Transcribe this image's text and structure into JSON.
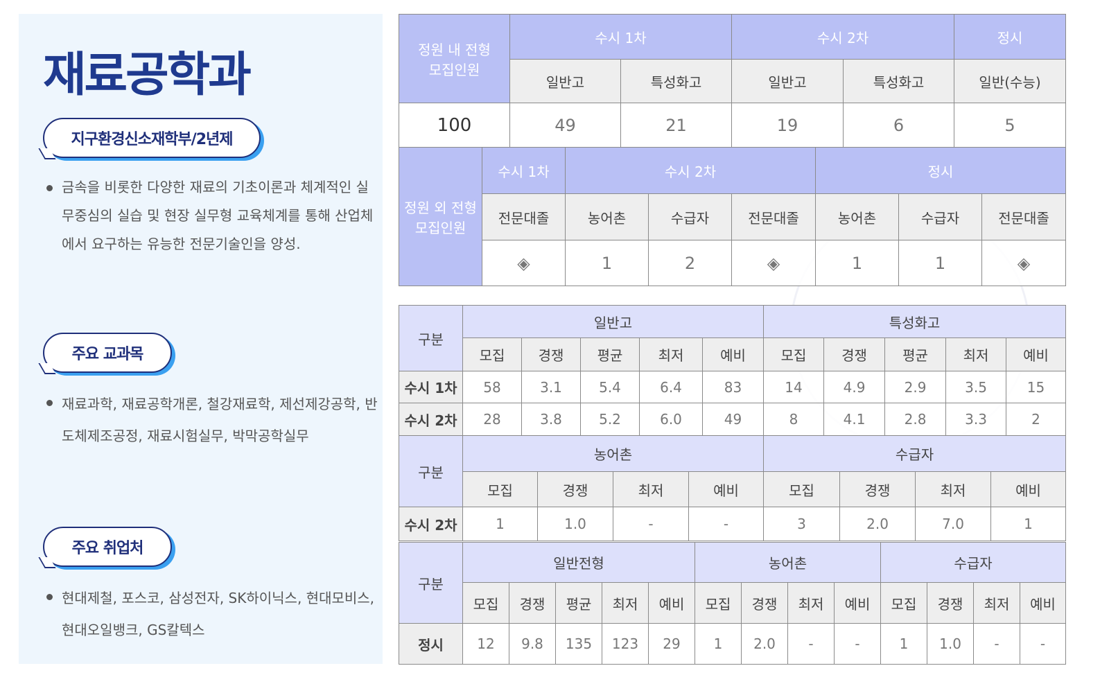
{
  "department": {
    "title": "재료공학과"
  },
  "sections": [
    {
      "badge": "지구환경신소재학부/2년제",
      "text": " 금속을 비롯한 다양한 재료의 기초이론과 체계적인 실무중심의 실습 및 현장 실무형 교육체계를 통해 산업체에서 요구하는 유능한 전문기술인을 양성."
    },
    {
      "badge": "주요 교과목",
      "text": "재료과학, 재료공학개론, 철강재료학, 제선제강공학, 반도체제조공정, 재료시험실무, 박막공학실무"
    },
    {
      "badge": "주요 취업처",
      "text": "현대제철, 포스코, 삼성전자, SK하이닉스, 현대모비스, 현대오일뱅크, GS칼텍스"
    }
  ],
  "colors": {
    "title": "#1f3a8f",
    "header_dark": "#b9c0f5",
    "header_light": "#dde0fb",
    "subheader": "#eeeeee",
    "badge_shadow": "#3aa0f0"
  },
  "tables": [
    {
      "id": "quota-inside",
      "rows": [
        [
          {
            "t": "정원 내 전형\n모집인원",
            "c": "h",
            "rs": 2
          },
          {
            "t": "수시 1차",
            "c": "h",
            "cs": 2
          },
          {
            "t": "수시 2차",
            "c": "h",
            "cs": 2
          },
          {
            "t": "정시",
            "c": "h"
          }
        ],
        [
          {
            "t": "일반고",
            "c": "s"
          },
          {
            "t": "특성화고",
            "c": "s"
          },
          {
            "t": "일반고",
            "c": "s"
          },
          {
            "t": "특성화고",
            "c": "s"
          },
          {
            "t": "일반(수능)",
            "c": "s"
          }
        ],
        [
          {
            "t": "100",
            "c": "v big"
          },
          {
            "t": "49",
            "c": "v"
          },
          {
            "t": "21",
            "c": "v"
          },
          {
            "t": "19",
            "c": "v"
          },
          {
            "t": "6",
            "c": "v"
          },
          {
            "t": "5",
            "c": "v"
          }
        ]
      ]
    },
    {
      "id": "quota-outside",
      "rows": [
        [
          {
            "t": "정원 외 전형\n모집인원",
            "c": "h",
            "rs": 3
          },
          {
            "t": "수시 1차",
            "c": "h"
          },
          {
            "t": "수시 2차",
            "c": "h",
            "cs": 3
          },
          {
            "t": "정시",
            "c": "h",
            "cs": 3
          }
        ],
        [
          {
            "t": "전문대졸",
            "c": "s"
          },
          {
            "t": "농어촌",
            "c": "s"
          },
          {
            "t": "수급자",
            "c": "s"
          },
          {
            "t": "전문대졸",
            "c": "s"
          },
          {
            "t": "농어촌",
            "c": "s"
          },
          {
            "t": "수급자",
            "c": "s"
          },
          {
            "t": "전문대졸",
            "c": "s"
          }
        ],
        [
          {
            "t": "◈",
            "c": "v"
          },
          {
            "t": "1",
            "c": "v"
          },
          {
            "t": "2",
            "c": "v"
          },
          {
            "t": "◈",
            "c": "v"
          },
          {
            "t": "1",
            "c": "v"
          },
          {
            "t": "1",
            "c": "v"
          },
          {
            "t": "◈",
            "c": "v"
          }
        ]
      ]
    },
    {
      "id": "results-susi",
      "rows": [
        [
          {
            "t": "구분",
            "c": "h",
            "rs": 2
          },
          {
            "t": "일반고",
            "c": "h",
            "cs": 5
          },
          {
            "t": "특성화고",
            "c": "h",
            "cs": 5
          }
        ],
        [
          {
            "t": "모집",
            "c": "s"
          },
          {
            "t": "경쟁",
            "c": "s"
          },
          {
            "t": "평균",
            "c": "s"
          },
          {
            "t": "최저",
            "c": "s"
          },
          {
            "t": "예비",
            "c": "s"
          },
          {
            "t": "모집",
            "c": "s"
          },
          {
            "t": "경쟁",
            "c": "s"
          },
          {
            "t": "평균",
            "c": "s"
          },
          {
            "t": "최저",
            "c": "s"
          },
          {
            "t": "예비",
            "c": "s"
          }
        ],
        [
          {
            "t": "수시 1차",
            "c": "rl"
          },
          {
            "t": "58",
            "c": "v"
          },
          {
            "t": "3.1",
            "c": "v"
          },
          {
            "t": "5.4",
            "c": "v"
          },
          {
            "t": "6.4",
            "c": "v"
          },
          {
            "t": "83",
            "c": "v"
          },
          {
            "t": "14",
            "c": "v"
          },
          {
            "t": "4.9",
            "c": "v"
          },
          {
            "t": "2.9",
            "c": "v"
          },
          {
            "t": "3.5",
            "c": "v"
          },
          {
            "t": "15",
            "c": "v"
          }
        ],
        [
          {
            "t": "수시 2차",
            "c": "rl"
          },
          {
            "t": "28",
            "c": "v"
          },
          {
            "t": "3.8",
            "c": "v"
          },
          {
            "t": "5.2",
            "c": "v"
          },
          {
            "t": "6.0",
            "c": "v"
          },
          {
            "t": "49",
            "c": "v"
          },
          {
            "t": "8",
            "c": "v"
          },
          {
            "t": "4.1",
            "c": "v"
          },
          {
            "t": "2.8",
            "c": "v"
          },
          {
            "t": "3.3",
            "c": "v"
          },
          {
            "t": "2",
            "c": "v"
          }
        ]
      ]
    },
    {
      "id": "results-susi2-special",
      "rows": [
        [
          {
            "t": "구분",
            "c": "h",
            "rs": 2
          },
          {
            "t": "농어촌",
            "c": "h",
            "cs": 4
          },
          {
            "t": "수급자",
            "c": "h",
            "cs": 4
          }
        ],
        [
          {
            "t": "모집",
            "c": "s"
          },
          {
            "t": "경쟁",
            "c": "s"
          },
          {
            "t": "최저",
            "c": "s"
          },
          {
            "t": "예비",
            "c": "s"
          },
          {
            "t": "모집",
            "c": "s"
          },
          {
            "t": "경쟁",
            "c": "s"
          },
          {
            "t": "최저",
            "c": "s"
          },
          {
            "t": "예비",
            "c": "s"
          }
        ],
        [
          {
            "t": "수시 2차",
            "c": "rl"
          },
          {
            "t": "1",
            "c": "v"
          },
          {
            "t": "1.0",
            "c": "v"
          },
          {
            "t": "-",
            "c": "v"
          },
          {
            "t": "-",
            "c": "v"
          },
          {
            "t": "3",
            "c": "v"
          },
          {
            "t": "2.0",
            "c": "v"
          },
          {
            "t": "7.0",
            "c": "v"
          },
          {
            "t": "1",
            "c": "v"
          }
        ]
      ]
    },
    {
      "id": "results-jeongsi",
      "rows": [
        [
          {
            "t": "구분",
            "c": "h",
            "rs": 2
          },
          {
            "t": "일반전형",
            "c": "h",
            "cs": 5
          },
          {
            "t": "농어촌",
            "c": "h",
            "cs": 4
          },
          {
            "t": "수급자",
            "c": "h",
            "cs": 4
          }
        ],
        [
          {
            "t": "모집",
            "c": "s"
          },
          {
            "t": "경쟁",
            "c": "s"
          },
          {
            "t": "평균",
            "c": "s"
          },
          {
            "t": "최저",
            "c": "s"
          },
          {
            "t": "예비",
            "c": "s"
          },
          {
            "t": "모집",
            "c": "s"
          },
          {
            "t": "경쟁",
            "c": "s"
          },
          {
            "t": "최저",
            "c": "s"
          },
          {
            "t": "예비",
            "c": "s"
          },
          {
            "t": "모집",
            "c": "s"
          },
          {
            "t": "경쟁",
            "c": "s"
          },
          {
            "t": "최저",
            "c": "s"
          },
          {
            "t": "예비",
            "c": "s"
          }
        ],
        [
          {
            "t": "정시",
            "c": "rl"
          },
          {
            "t": "12",
            "c": "v"
          },
          {
            "t": "9.8",
            "c": "v"
          },
          {
            "t": "135",
            "c": "v"
          },
          {
            "t": "123",
            "c": "v"
          },
          {
            "t": "29",
            "c": "v"
          },
          {
            "t": "1",
            "c": "v"
          },
          {
            "t": "2.0",
            "c": "v"
          },
          {
            "t": "-",
            "c": "v"
          },
          {
            "t": "-",
            "c": "v"
          },
          {
            "t": "1",
            "c": "v"
          },
          {
            "t": "1.0",
            "c": "v"
          },
          {
            "t": "-",
            "c": "v"
          },
          {
            "t": "-",
            "c": "v"
          }
        ]
      ]
    }
  ]
}
